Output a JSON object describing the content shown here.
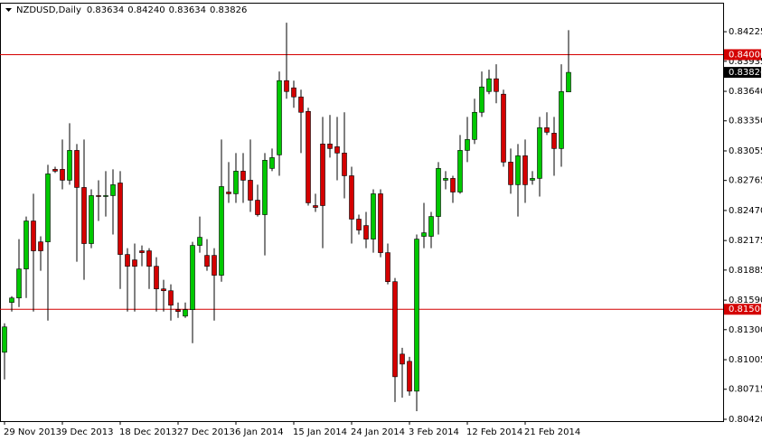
{
  "chart_data": {
    "type": "candlestick",
    "symbol": "NZDUSD,Daily",
    "quote": [
      "0.83634",
      "0.84240",
      "0.83634",
      "0.83826"
    ],
    "categories": [
      "29 Nov 2013",
      null,
      null,
      null,
      null,
      null,
      null,
      null,
      "9 Dec 2013",
      null,
      null,
      null,
      null,
      null,
      null,
      null,
      "18 Dec 2013",
      null,
      null,
      null,
      null,
      null,
      null,
      null,
      "27 Dec 2013",
      null,
      null,
      null,
      null,
      null,
      null,
      null,
      "6 Jan 2014",
      null,
      null,
      null,
      null,
      null,
      null,
      null,
      "15 Jan 2014",
      null,
      null,
      null,
      null,
      null,
      null,
      null,
      "24 Jan 2014",
      null,
      null,
      null,
      null,
      null,
      null,
      null,
      "3 Feb 2014",
      null,
      null,
      null,
      null,
      null,
      null,
      null,
      "12 Feb 2014",
      null,
      null,
      null,
      null,
      null,
      null,
      null,
      "21 Feb 2014",
      null,
      null,
      null,
      null,
      null,
      null
    ],
    "open": [
      0.81078,
      0.81567,
      0.81611,
      0.81896,
      0.82367,
      0.82162,
      0.82162,
      0.82874,
      0.82874,
      0.82767,
      0.8306,
      0.82696,
      0.82145,
      0.82616,
      0.82607,
      0.82616,
      0.8274,
      0.82038,
      0.81985,
      0.82074,
      0.82074,
      0.81922,
      0.817,
      0.81682,
      0.81496,
      0.81433,
      0.81496,
      0.82127,
      0.82029,
      0.82029,
      0.81834,
      0.82651,
      0.82634,
      0.82856,
      0.82767,
      0.82571,
      0.82429,
      0.82883,
      0.83016,
      0.83745,
      0.83674,
      0.83585,
      0.83443,
      0.82518,
      0.83123,
      0.83123,
      0.83096,
      0.83034,
      0.82811,
      0.82385,
      0.82322,
      0.82189,
      0.82634,
      0.82056,
      0.81771,
      0.8106,
      0.80989,
      0.80696,
      0.82216,
      0.82216,
      0.82411,
      0.82767,
      0.82785,
      0.82651,
      0.8306,
      0.83167,
      0.83434,
      0.83638,
      0.83763,
      0.83612,
      0.82945,
      0.82723,
      0.83007,
      0.82767,
      0.82785,
      0.83283,
      0.83229,
      0.83078,
      0.83634
    ],
    "high": [
      0.81362,
      0.81629,
      0.82189,
      0.82411,
      0.82634,
      0.82216,
      0.82918,
      0.829,
      0.83167,
      0.83327,
      0.83123,
      0.83167,
      0.82678,
      0.82767,
      0.82856,
      0.82874,
      0.82856,
      0.821,
      0.82145,
      0.82127,
      0.821,
      0.82011,
      0.81789,
      0.81745,
      0.81567,
      0.81567,
      0.82162,
      0.82411,
      0.82189,
      0.821,
      0.83167,
      0.82945,
      0.83034,
      0.83034,
      0.83167,
      0.82723,
      0.83034,
      0.83078,
      0.83834,
      0.84314,
      0.83745,
      0.83656,
      0.83478,
      0.82634,
      0.83389,
      0.83407,
      0.83389,
      0.83434,
      0.829,
      0.82429,
      0.82456,
      0.82678,
      0.82678,
      0.82145,
      0.81807,
      0.81122,
      0.81033,
      0.82234,
      0.82545,
      0.82456,
      0.82945,
      0.82856,
      0.82811,
      0.83211,
      0.83389,
      0.83567,
      0.83834,
      0.83852,
      0.83905,
      0.83656,
      0.83078,
      0.83123,
      0.83167,
      0.82856,
      0.83389,
      0.83434,
      0.83389,
      0.83905,
      0.8424
    ],
    "low": [
      0.80811,
      0.81478,
      0.81522,
      0.81611,
      0.81478,
      0.81878,
      0.81389,
      0.82838,
      0.82678,
      0.82723,
      0.81967,
      0.81789,
      0.821,
      0.82367,
      0.82411,
      0.82234,
      0.817,
      0.81478,
      0.81478,
      0.81922,
      0.817,
      0.81478,
      0.81478,
      0.81389,
      0.81416,
      0.81416,
      0.81167,
      0.82056,
      0.81878,
      0.81389,
      0.81771,
      0.82545,
      0.82545,
      0.82545,
      0.82456,
      0.82411,
      0.82029,
      0.82856,
      0.82811,
      0.83567,
      0.83478,
      0.83034,
      0.82518,
      0.82456,
      0.821,
      0.82989,
      0.82767,
      0.82589,
      0.82145,
      0.82234,
      0.821,
      0.82056,
      0.82011,
      0.81745,
      0.80589,
      0.80633,
      0.80651,
      0.805,
      0.821,
      0.821,
      0.82234,
      0.82678,
      0.82545,
      0.82634,
      0.82945,
      0.83123,
      0.83389,
      0.83612,
      0.83523,
      0.829,
      0.82634,
      0.82411,
      0.82545,
      0.82723,
      0.82607,
      0.83211,
      0.82811,
      0.829,
      0.83634
    ],
    "close": [
      0.81327,
      0.81611,
      0.81896,
      0.82367,
      0.82074,
      0.82074,
      0.82829,
      0.82856,
      0.82767,
      0.8306,
      0.82696,
      0.82145,
      0.82616,
      0.82607,
      0.82616,
      0.82723,
      0.82038,
      0.81922,
      0.81922,
      0.82056,
      0.81922,
      0.817,
      0.81682,
      0.8154,
      0.81478,
      0.81496,
      0.82127,
      0.82207,
      0.81922,
      0.81834,
      0.82705,
      0.82634,
      0.82856,
      0.82767,
      0.82571,
      0.82429,
      0.82963,
      0.82989,
      0.83745,
      0.83638,
      0.83585,
      0.83434,
      0.82545,
      0.825,
      0.82518,
      0.83078,
      0.83034,
      0.82811,
      0.82385,
      0.82278,
      0.82189,
      0.82634,
      0.82056,
      0.81771,
      0.80838,
      0.80962,
      0.80696,
      0.82189,
      0.82251,
      0.82411,
      0.82883,
      0.82785,
      0.82651,
      0.8306,
      0.83167,
      0.83434,
      0.83683,
      0.83763,
      0.83638,
      0.82945,
      0.82723,
      0.83007,
      0.82723,
      0.82785,
      0.83283,
      0.83238,
      0.83078,
      0.83638,
      0.83826
    ],
    "up_color": "#00c800",
    "down_color": "#d40000",
    "ylim": [
      0.80402,
      0.84501
    ],
    "yticks": [
      0.84225,
      0.83935,
      {
        "value": 0.8364,
        "label": "0.83640"
      },
      {
        "value": 0.8335,
        "label": "0.83350"
      },
      0.83055,
      0.82765,
      {
        "value": 0.8247,
        "label": "0.82470"
      },
      0.82175,
      0.81885,
      {
        "value": 0.8159,
        "label": "0.81590"
      },
      {
        "value": 0.813,
        "label": "0.81300"
      },
      0.81005,
      0.80715,
      {
        "value": 0.8042,
        "label": "0.80420"
      }
    ],
    "hlines": [
      {
        "value": 0.84,
        "label": "0.84000",
        "color": "#d40000"
      },
      {
        "value": 0.815,
        "label": "0.81500",
        "color": "#d40000"
      }
    ],
    "current_price": {
      "value": 0.83826,
      "label": "0.83826",
      "color": "#000000"
    }
  }
}
